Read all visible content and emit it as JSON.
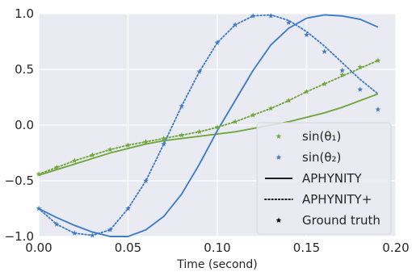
{
  "chart_data": {
    "type": "line",
    "xlabel": "Time (second)",
    "ylabel": "",
    "xlim": [
      0.0,
      0.2
    ],
    "ylim": [
      -1.0,
      1.0
    ],
    "x_ticks": [
      0.0,
      0.05,
      0.1,
      0.15,
      0.2
    ],
    "x_tick_labels": [
      "0.00",
      "0.05",
      "0.10",
      "0.15",
      "0.20"
    ],
    "y_ticks": [
      -1.0,
      -0.5,
      0.0,
      0.5,
      1.0
    ],
    "y_tick_labels": [
      "−1.0",
      "−0.5",
      "0.0",
      "0.5",
      "1.0"
    ],
    "grid": true,
    "legend_position": "lower right",
    "colors": {
      "green": "#70a83c",
      "blue": "#3f7ec4"
    },
    "x": [
      0.0,
      0.01,
      0.02,
      0.03,
      0.04,
      0.05,
      0.06,
      0.07,
      0.08,
      0.09,
      0.1,
      0.11,
      0.12,
      0.13,
      0.14,
      0.15,
      0.16,
      0.17,
      0.18,
      0.19
    ],
    "series": [
      {
        "name": "APHYNITY",
        "group": "sin1",
        "style": "solid",
        "color": "#70a83c",
        "values": [
          -0.45,
          -0.4,
          -0.35,
          -0.3,
          -0.25,
          -0.21,
          -0.17,
          -0.14,
          -0.12,
          -0.1,
          -0.08,
          -0.06,
          -0.03,
          0.0,
          0.03,
          0.07,
          0.11,
          0.16,
          0.22,
          0.28
        ]
      },
      {
        "name": "APHYNITY",
        "group": "sin2",
        "style": "solid",
        "color": "#3f7ec4",
        "values": [
          -0.75,
          -0.83,
          -0.9,
          -0.96,
          -1.0,
          -1.0,
          -0.94,
          -0.82,
          -0.62,
          -0.35,
          -0.05,
          0.22,
          0.49,
          0.72,
          0.87,
          0.96,
          0.99,
          0.98,
          0.95,
          0.88
        ]
      },
      {
        "name": "APHYNITY+",
        "group": "sin1",
        "style": "dotted",
        "color": "#70a83c",
        "values": [
          -0.44,
          -0.38,
          -0.32,
          -0.27,
          -0.22,
          -0.18,
          -0.15,
          -0.12,
          -0.09,
          -0.06,
          -0.02,
          0.03,
          0.09,
          0.15,
          0.22,
          0.3,
          0.37,
          0.44,
          0.51,
          0.58
        ]
      },
      {
        "name": "APHYNITY+",
        "group": "sin2",
        "style": "dotted",
        "color": "#3f7ec4",
        "values": [
          -0.75,
          -0.89,
          -0.97,
          -0.99,
          -0.94,
          -0.75,
          -0.5,
          -0.17,
          0.17,
          0.48,
          0.74,
          0.9,
          0.98,
          0.99,
          0.94,
          0.84,
          0.71,
          0.56,
          0.41,
          0.28
        ]
      },
      {
        "name": "sin(θ₁)",
        "group": "sin1",
        "style": "star",
        "color": "#70a83c",
        "values": [
          -0.44,
          -0.38,
          -0.32,
          -0.27,
          -0.22,
          -0.18,
          -0.15,
          -0.12,
          -0.09,
          -0.06,
          -0.02,
          0.03,
          0.09,
          0.15,
          0.22,
          0.3,
          0.37,
          0.45,
          0.52,
          0.58
        ]
      },
      {
        "name": "sin(θ₂)",
        "group": "sin2",
        "style": "star",
        "color": "#3f7ec4",
        "values": [
          -0.75,
          -0.89,
          -0.97,
          -0.99,
          -0.94,
          -0.75,
          -0.5,
          -0.17,
          0.17,
          0.48,
          0.74,
          0.9,
          0.98,
          0.98,
          0.92,
          0.81,
          0.66,
          0.49,
          0.32,
          0.14
        ]
      }
    ],
    "legend": [
      {
        "label": "sin(θ₁)",
        "kind": "star",
        "color": "#70a83c"
      },
      {
        "label": "sin(θ₂)",
        "kind": "star",
        "color": "#3f7ec4"
      },
      {
        "label": "APHYNITY",
        "kind": "solid",
        "color": "#000000"
      },
      {
        "label": "APHYNITY+",
        "kind": "dotted",
        "color": "#000000"
      },
      {
        "label": "Ground truth",
        "kind": "star",
        "color": "#000000"
      }
    ]
  }
}
